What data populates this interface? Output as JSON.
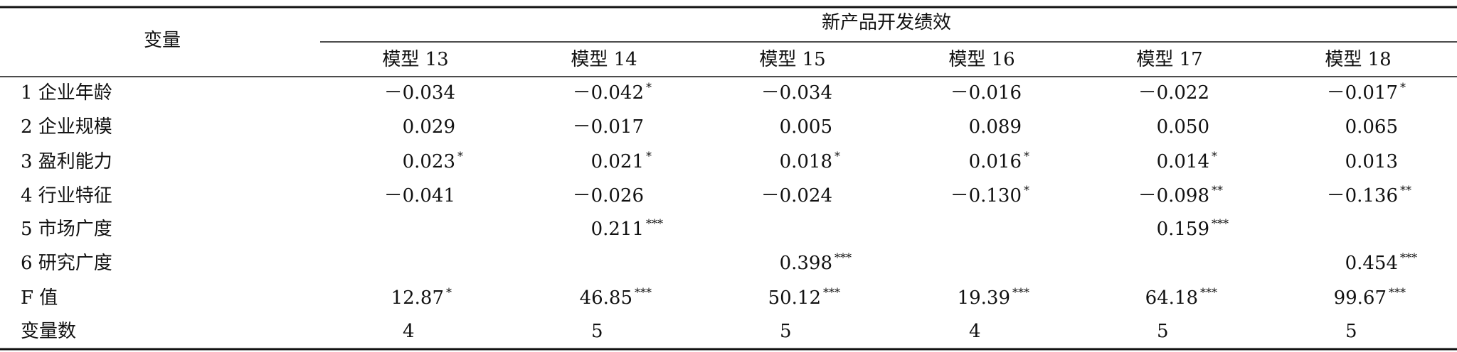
{
  "table": {
    "header": {
      "row_label": "变量",
      "group": "新产品开发绩效",
      "columns": [
        "模型 13",
        "模型 14",
        "模型 15",
        "模型 16",
        "模型 17",
        "模型 18"
      ]
    },
    "rows": [
      {
        "label": "1 企业年龄",
        "cells": [
          {
            "value": "－0.034"
          },
          {
            "value": "－0.042",
            "sig": "*"
          },
          {
            "value": "－0.034"
          },
          {
            "value": "－0.016"
          },
          {
            "value": "－0.022"
          },
          {
            "value": "－0.017",
            "sig": "*"
          }
        ]
      },
      {
        "label": "2 企业规模",
        "cells": [
          {
            "value": "0.029"
          },
          {
            "value": "－0.017"
          },
          {
            "value": "0.005"
          },
          {
            "value": "0.089"
          },
          {
            "value": "0.050"
          },
          {
            "value": "0.065"
          }
        ]
      },
      {
        "label": "3 盈利能力",
        "cells": [
          {
            "value": "0.023",
            "sig": "*"
          },
          {
            "value": "0.021",
            "sig": "*"
          },
          {
            "value": "0.018",
            "sig": "*"
          },
          {
            "value": "0.016",
            "sig": "*"
          },
          {
            "value": "0.014",
            "sig": "*"
          },
          {
            "value": "0.013"
          }
        ]
      },
      {
        "label": "4 行业特征",
        "cells": [
          {
            "value": "－0.041"
          },
          {
            "value": "－0.026"
          },
          {
            "value": "－0.024"
          },
          {
            "value": "－0.130",
            "sig": "*"
          },
          {
            "value": "－0.098",
            "sig": "**"
          },
          {
            "value": "－0.136",
            "sig": "**"
          }
        ]
      },
      {
        "label": "5 市场广度",
        "cells": [
          null,
          {
            "value": "0.211",
            "sig": "***"
          },
          null,
          null,
          {
            "value": "0.159",
            "sig": "***"
          },
          null
        ]
      },
      {
        "label": "6 研究广度",
        "cells": [
          null,
          null,
          {
            "value": "0.398",
            "sig": "***"
          },
          null,
          null,
          {
            "value": "0.454",
            "sig": "***"
          }
        ]
      },
      {
        "label": "F 值",
        "cells": [
          {
            "value": "12.87",
            "sig": "*"
          },
          {
            "value": "46.85",
            "sig": "***"
          },
          {
            "value": "50.12",
            "sig": "***"
          },
          {
            "value": "19.39",
            "sig": "***"
          },
          {
            "value": "64.18",
            "sig": "***"
          },
          {
            "value": "99.67",
            "sig": "***"
          }
        ]
      },
      {
        "label": "变量数",
        "cells": [
          {
            "value": "4"
          },
          {
            "value": "5"
          },
          {
            "value": "5"
          },
          {
            "value": "4"
          },
          {
            "value": "5"
          },
          {
            "value": "5"
          }
        ]
      }
    ]
  }
}
